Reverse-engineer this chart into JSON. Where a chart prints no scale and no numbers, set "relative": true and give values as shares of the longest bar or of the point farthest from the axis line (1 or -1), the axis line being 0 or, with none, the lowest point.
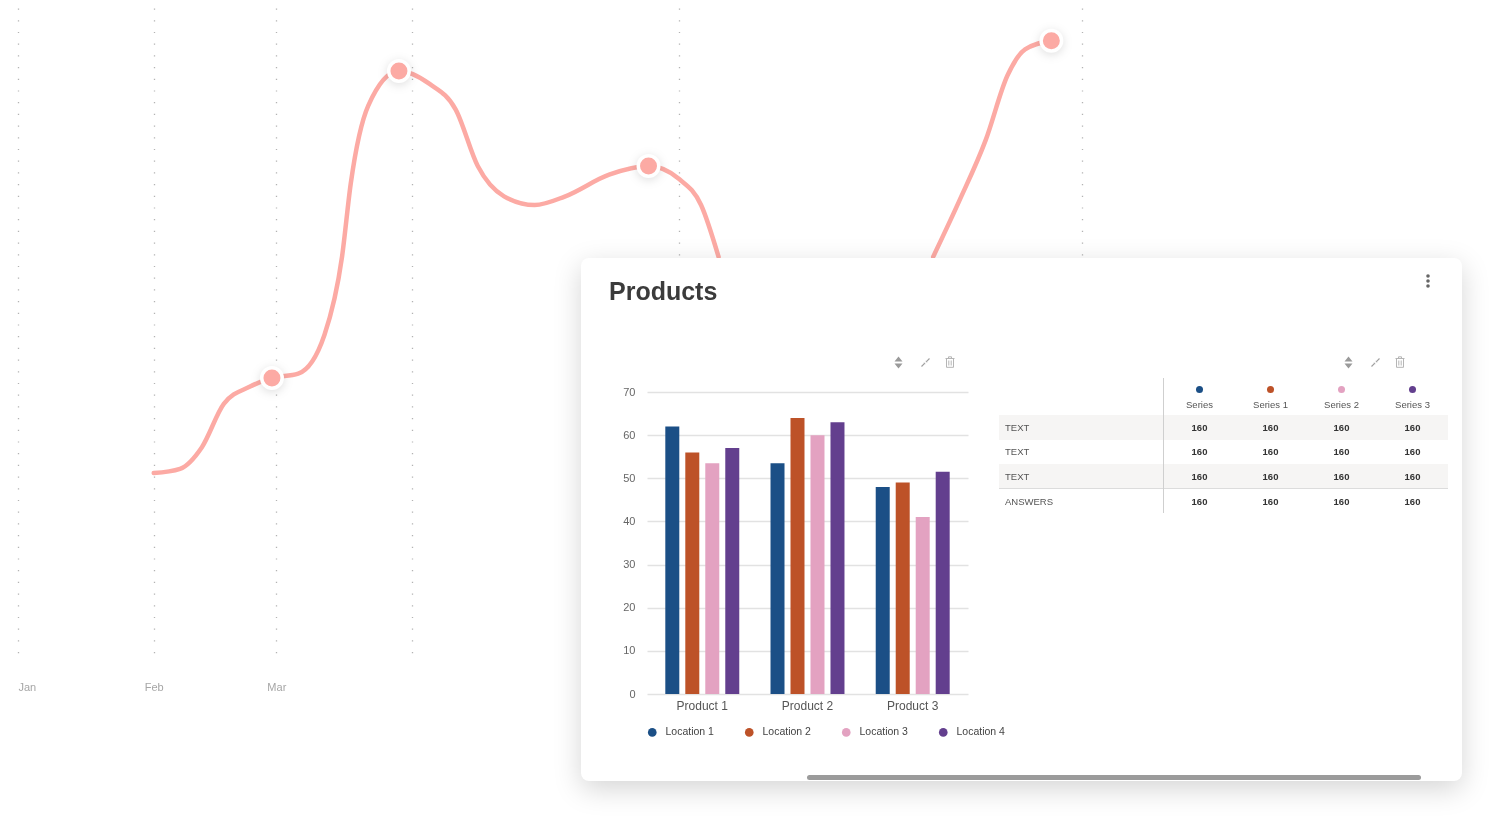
{
  "chart_data": [
    {
      "type": "line",
      "relative": true,
      "xlim": [
        "--01-01",
        "--09-01"
      ],
      "xticks": [
        {
          "value": "--01-01",
          "label": "Jan"
        },
        {
          "value": "--02-01",
          "label": "Feb"
        },
        {
          "value": "--03-01",
          "label": "Mar"
        },
        {
          "value": "--04-01",
          "label": null
        },
        {
          "value": "--06-01",
          "label": null
        },
        {
          "value": "--09-01",
          "label": null
        }
      ],
      "grid": "x",
      "line_style": "solid",
      "series": [
        {
          "type": "line",
          "color": "#fcaaa4",
          "x": [
            "--02-01",
            "--02-07",
            "--02-12",
            "--02-17",
            "--02-23",
            "--02-28",
            "--03-06",
            "--03-12",
            "--03-16",
            "--03-18",
            "--03-22",
            "--03-29",
            "--04-05",
            "--04-11",
            "--04-16",
            "--04-22",
            "--04-29",
            "--05-06",
            "--05-16",
            "--05-25",
            "--06-01",
            "--06-06",
            "--06-10",
            "--07-04",
            "--07-29",
            "--08-04",
            "--08-10",
            "--08-15",
            "--08-19",
            "--08-25"
          ],
          "values": [
            0,
            0.01,
            0.06,
            0.16,
            0.2,
            0.22,
            0.23,
            0.32,
            0.5,
            0.67,
            0.85,
            0.93,
            0.9,
            0.84,
            0.71,
            0.64,
            0.62,
            0.64,
            0.69,
            0.71,
            0.68,
            0.62,
            0.5,
            null,
            0.5,
            0.63,
            0.77,
            0.92,
            0.98,
            1
          ]
        },
        {
          "type": "scatter",
          "color": "#fcaaa4",
          "marker": "circle",
          "x": [
            "--02-28",
            "--03-29",
            "--05-25",
            "--08-25"
          ],
          "values": [
            0.22,
            0.93,
            0.71,
            1
          ]
        }
      ]
    },
    {
      "type": "bar",
      "title": "Products",
      "categories": [
        "Product 1",
        "Product 2",
        "Product 3"
      ],
      "series": [
        {
          "name": "Location 1",
          "color": "#1b4f86",
          "values": [
            62,
            53.5,
            48
          ]
        },
        {
          "name": "Location 2",
          "color": "#bd5228",
          "values": [
            56,
            64,
            49
          ]
        },
        {
          "name": "Location 3",
          "color": "#e3a2c1",
          "values": [
            53.5,
            60,
            41
          ]
        },
        {
          "name": "Location 4",
          "color": "#633f8e",
          "values": [
            57,
            63,
            51.5
          ]
        }
      ],
      "ylim": [
        0,
        70
      ],
      "yticks": [
        0,
        10,
        20,
        30,
        40,
        50,
        60,
        70
      ],
      "grid": "y",
      "legend": "bottom"
    },
    {
      "type": "other",
      "categories": [
        "Series",
        "Series 1",
        "Series 2",
        "Series 3"
      ],
      "colors": [
        "#1b4f86",
        "#bd5228",
        "#e3a2c1",
        "#633f8e"
      ],
      "y_categories": [
        "TEXT",
        "TEXT",
        "TEXT",
        "ANSWERS"
      ],
      "cell_labels": [
        [
          "160",
          "160",
          "160",
          "160"
        ],
        [
          "160",
          "160",
          "160",
          "160"
        ],
        [
          "160",
          "160",
          "160",
          "160"
        ],
        [
          "160",
          "160",
          "160",
          "160"
        ]
      ]
    }
  ]
}
